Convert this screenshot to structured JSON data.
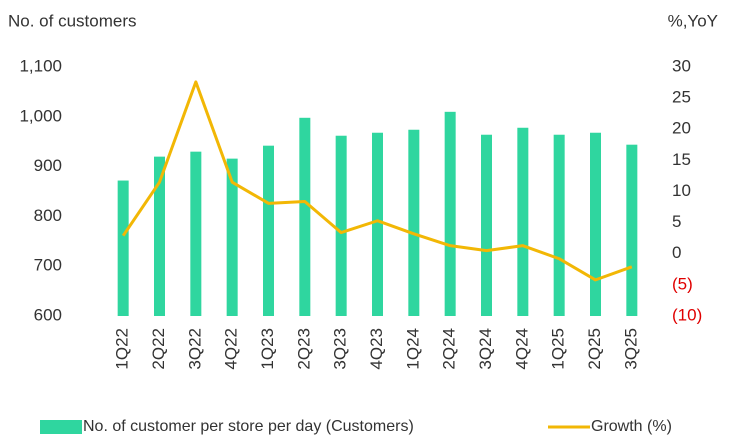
{
  "chart_data": {
    "type": "bar_line",
    "y_axis_label": "No. of customers",
    "y2_axis_label": "%,YoY",
    "categories": [
      "1Q22",
      "2Q22",
      "3Q22",
      "4Q22",
      "1Q23",
      "2Q23",
      "3Q23",
      "4Q23",
      "1Q24",
      "2Q24",
      "3Q24",
      "4Q24",
      "1Q25",
      "2Q25",
      "3Q25"
    ],
    "series": [
      {
        "name": "No. of customer per store per day (Customers)",
        "type": "bar",
        "color": "#2fd69f",
        "axis": "y",
        "values": [
          872,
          920,
          930,
          916,
          942,
          998,
          962,
          968,
          974,
          1010,
          964,
          978,
          964,
          968,
          944
        ]
      },
      {
        "name": "Growth (%)",
        "type": "line",
        "color": "#f2b705",
        "axis": "y2",
        "values": [
          2.9,
          11.5,
          27.6,
          11.5,
          8.1,
          8.4,
          3.4,
          5.3,
          3.2,
          1.3,
          0.5,
          1.3,
          -0.8,
          -4.2,
          -2.1
        ]
      }
    ],
    "ylim": [
      600,
      1100
    ],
    "yticks": [
      600,
      700,
      800,
      900,
      {
        "value": 1000,
        "label": "1,000"
      },
      {
        "value": 1100,
        "label": "1,100"
      }
    ],
    "y2lim": [
      -10,
      30
    ],
    "y2ticks": [
      {
        "value": -10,
        "label": "(10)"
      },
      {
        "value": -5,
        "label": "(5)"
      },
      0,
      5,
      10,
      15,
      20,
      25,
      30
    ],
    "negative_tick_color": "#e00000",
    "grid": false,
    "legend": "bottom"
  }
}
